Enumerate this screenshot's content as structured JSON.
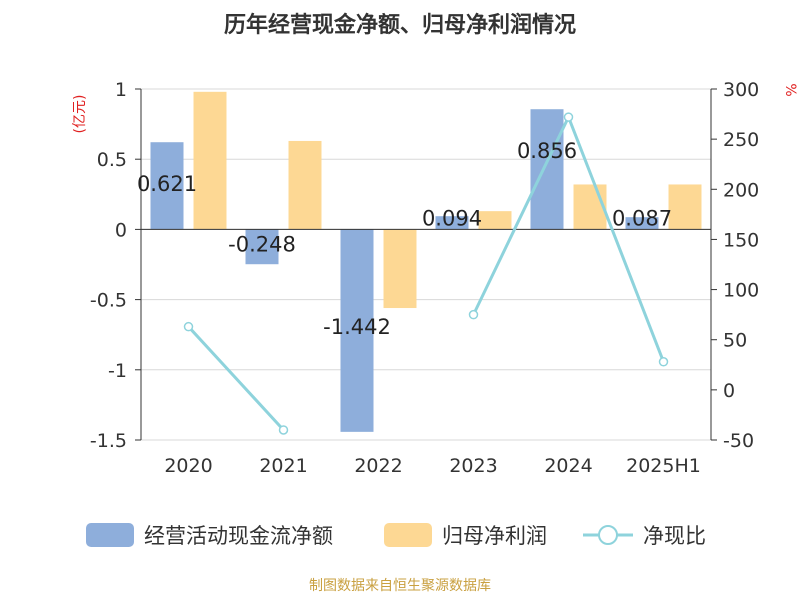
{
  "chart_data": {
    "type": "bar",
    "title": "历年经营现金净额、归母净利润情况",
    "categories": [
      "2020",
      "2021",
      "2022",
      "2023",
      "2024",
      "2025H1"
    ],
    "y_left": {
      "unit": "(亿元)",
      "ticks": [
        "1",
        "0.5",
        "0",
        "-0.5",
        "-1",
        "-1.5"
      ],
      "min": -1.5,
      "max": 1
    },
    "y_right": {
      "unit": "%",
      "ticks": [
        "300",
        "250",
        "200",
        "150",
        "100",
        "50",
        "0",
        "-50"
      ],
      "min": -50,
      "max": 300
    },
    "series": [
      {
        "name": "经营活动现金流净额",
        "type": "bar",
        "axis": "left",
        "color": "#8eaedb",
        "values": [
          0.621,
          -0.248,
          -1.442,
          0.094,
          0.856,
          0.087
        ],
        "labels": [
          "0.621",
          "-0.248",
          "-1.442",
          "0.094",
          "0.856",
          "0.087"
        ]
      },
      {
        "name": "归母净利润",
        "type": "bar",
        "axis": "left",
        "color": "#fdd894",
        "values": [
          0.98,
          0.63,
          -0.56,
          0.13,
          0.32,
          0.32
        ]
      },
      {
        "name": "净现比",
        "type": "line",
        "axis": "right",
        "color": "#8ed3dc",
        "values": [
          63,
          -40,
          null,
          75,
          272,
          28
        ]
      }
    ],
    "grid": true,
    "legend": "bottom"
  },
  "footer": {
    "source": "制图数据来自恒生聚源数据库"
  }
}
